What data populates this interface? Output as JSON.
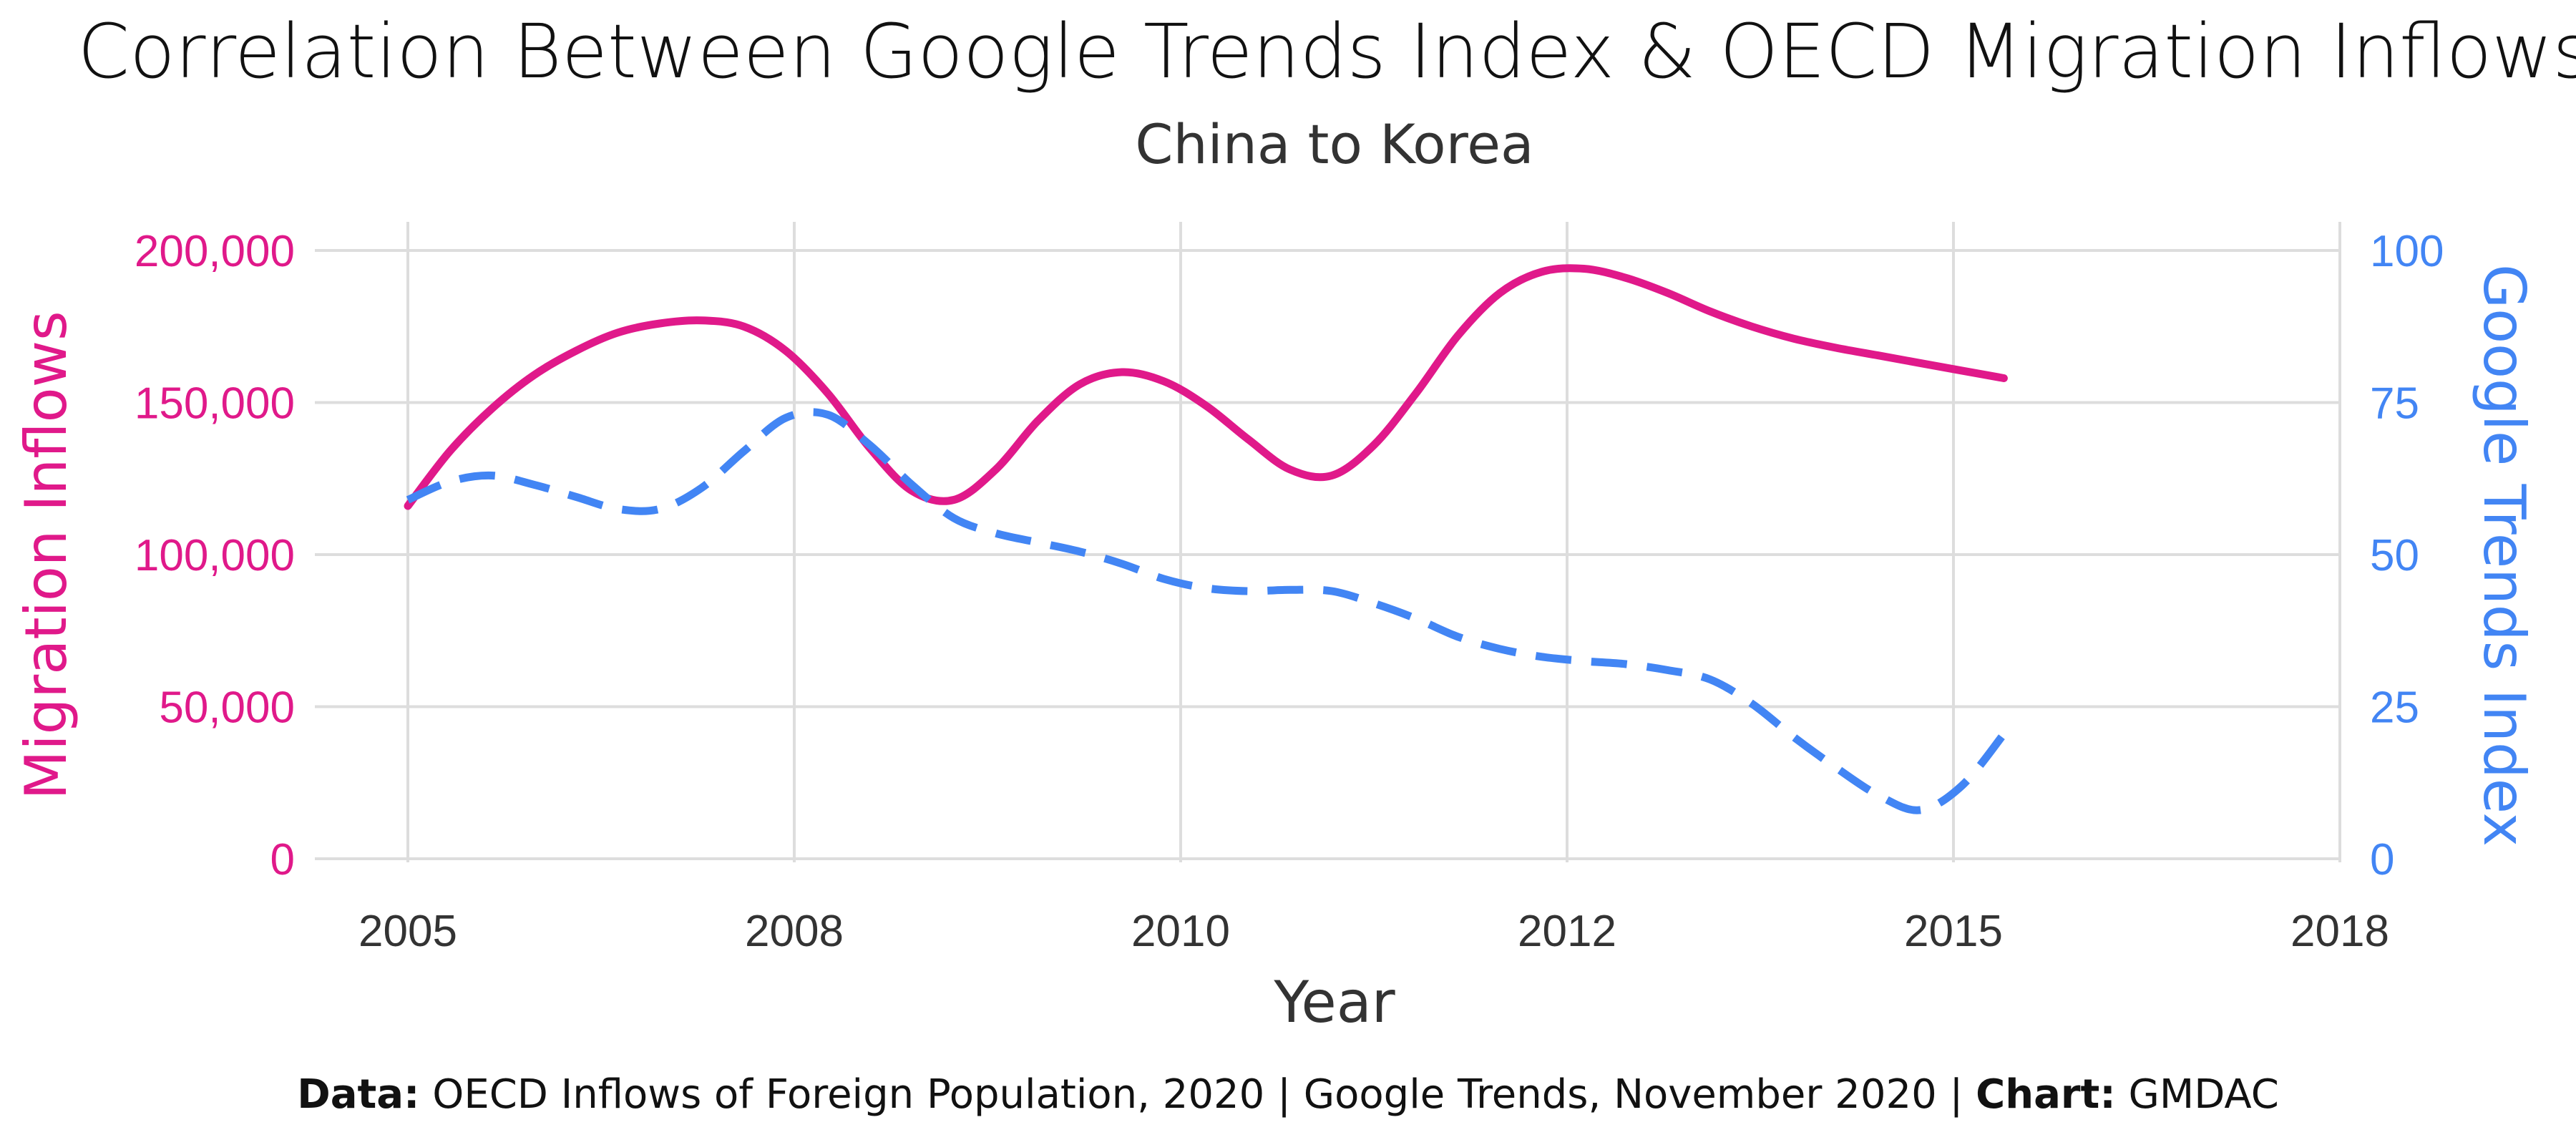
{
  "chart_data": {
    "type": "line",
    "title": "Correlation Between Google Trends Index & OECD Migration Inflows",
    "subtitle": "China to Korea",
    "xlabel": "Year",
    "ylabel_left": "Migration Inflows",
    "ylabel_right": "Google Trends Index",
    "x_ticks": [
      "2005",
      "2008",
      "2010",
      "2012",
      "2015",
      "2018"
    ],
    "y_left_ticks": [
      "0",
      "50,000",
      "100,000",
      "150,000",
      "200,000"
    ],
    "y_right_ticks": [
      "0",
      "25",
      "50",
      "75",
      "100"
    ],
    "ylim_left": [
      0,
      200000
    ],
    "ylim_right": [
      0,
      100
    ],
    "grid": true,
    "colors": {
      "left": "#e0198a",
      "right": "#4285f4"
    },
    "series": [
      {
        "name": "Migration Inflows",
        "axis": "left",
        "style": "solid",
        "color": "#e0198a",
        "points": [
          [
            0.0,
            116000
          ],
          [
            0.25,
            134000
          ],
          [
            0.5,
            148000
          ],
          [
            0.75,
            159000
          ],
          [
            1.0,
            167000
          ],
          [
            1.25,
            173000
          ],
          [
            1.5,
            176000
          ],
          [
            1.75,
            177000
          ],
          [
            2.0,
            175000
          ],
          [
            2.25,
            167000
          ],
          [
            2.5,
            153000
          ],
          [
            2.75,
            135000
          ],
          [
            3.0,
            121000
          ],
          [
            3.25,
            118000
          ],
          [
            3.5,
            128000
          ],
          [
            3.75,
            144000
          ],
          [
            4.0,
            156000
          ],
          [
            4.25,
            160000
          ],
          [
            4.5,
            157000
          ],
          [
            4.75,
            149000
          ],
          [
            5.0,
            138000
          ],
          [
            5.25,
            128000
          ],
          [
            5.5,
            126000
          ],
          [
            5.75,
            136000
          ],
          [
            6.0,
            153000
          ],
          [
            6.25,
            172000
          ],
          [
            6.5,
            186000
          ],
          [
            6.75,
            193000
          ],
          [
            7.0,
            194000
          ],
          [
            7.25,
            191000
          ],
          [
            7.5,
            186000
          ],
          [
            7.75,
            180000
          ],
          [
            8.0,
            175000
          ],
          [
            8.25,
            171000
          ],
          [
            8.5,
            168000
          ],
          [
            8.75,
            165500
          ],
          [
            9.0,
            163000
          ],
          [
            9.25,
            160500
          ],
          [
            9.5,
            158000
          ]
        ]
      },
      {
        "name": "Google Trends Index",
        "axis": "right",
        "style": "dashed",
        "color": "#4285f4",
        "points": [
          [
            0.0,
            59
          ],
          [
            0.25,
            62
          ],
          [
            0.5,
            63
          ],
          [
            0.75,
            61.5
          ],
          [
            1.0,
            59.5
          ],
          [
            1.25,
            57.5
          ],
          [
            1.5,
            57.5
          ],
          [
            1.75,
            61
          ],
          [
            2.0,
            67
          ],
          [
            2.25,
            72.5
          ],
          [
            2.5,
            73
          ],
          [
            2.75,
            68
          ],
          [
            3.0,
            61.5
          ],
          [
            3.25,
            56
          ],
          [
            3.5,
            53.5
          ],
          [
            3.75,
            52
          ],
          [
            4.0,
            50.5
          ],
          [
            4.25,
            48.5
          ],
          [
            4.5,
            46
          ],
          [
            4.75,
            44.5
          ],
          [
            5.0,
            44
          ],
          [
            5.25,
            44.2
          ],
          [
            5.5,
            44
          ],
          [
            5.75,
            42
          ],
          [
            6.0,
            39.5
          ],
          [
            6.25,
            36.5
          ],
          [
            6.5,
            34.5
          ],
          [
            6.75,
            33.2
          ],
          [
            7.0,
            32.5
          ],
          [
            7.25,
            32
          ],
          [
            7.5,
            31
          ],
          [
            7.75,
            29.5
          ],
          [
            8.0,
            25.5
          ],
          [
            8.25,
            20
          ],
          [
            8.5,
            15
          ],
          [
            8.75,
            10.5
          ],
          [
            9.0,
            8
          ],
          [
            9.25,
            12
          ],
          [
            9.5,
            20.5
          ]
        ]
      }
    ]
  },
  "caption": {
    "data_label": "Data:",
    "data_text": " OECD Inflows of Foreign Population, 2020 | Google Trends, November 2020 | ",
    "chart_label": "Chart:",
    "chart_text": " GMDAC"
  }
}
